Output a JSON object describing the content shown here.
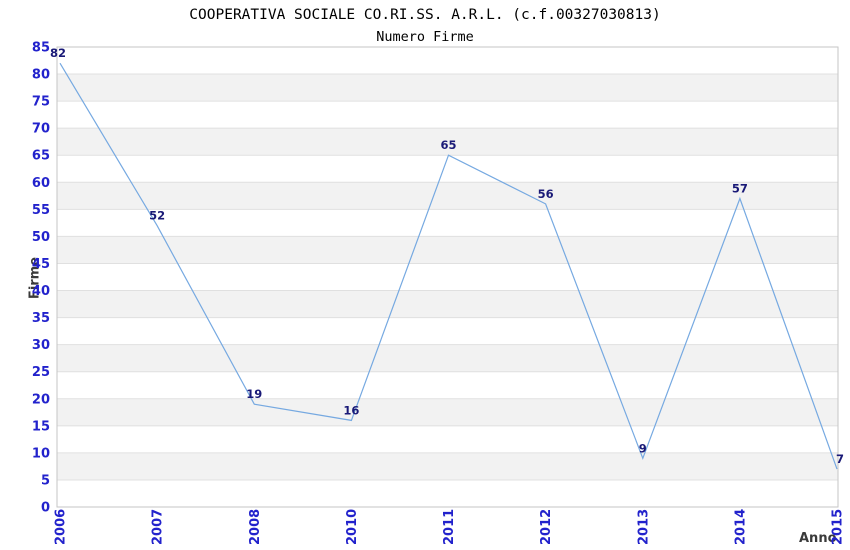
{
  "header": {
    "title": "COOPERATIVA SOCIALE CO.RI.SS. A.R.L. (c.f.00327030813)",
    "subtitle": "Numero Firme"
  },
  "chart_data": {
    "type": "line",
    "title": "COOPERATIVA SOCIALE CO.RI.SS. A.R.L. (c.f.00327030813)",
    "subtitle": "Numero Firme",
    "categories": [
      "2006",
      "2007",
      "2008",
      "2010",
      "2011",
      "2012",
      "2013",
      "2014",
      "2015"
    ],
    "values": [
      82,
      52,
      19,
      16,
      65,
      56,
      9,
      57,
      7
    ],
    "xlabel": "Anno",
    "ylabel": "Firme",
    "ylim": [
      0,
      85
    ],
    "ytick_step": 5,
    "grid": "horizontal alternating bands with gridlines every 5",
    "legend": "none",
    "point_labels_shown": true,
    "colors": {
      "line": "#76a9e1",
      "tick_label": "#2222cc",
      "point_label": "#191977",
      "band_fill": "#f2f2f2",
      "gridline": "#e0e0e0",
      "plot_border": "#c6c6c6",
      "axis_title": "#3a3a3a",
      "title": "#000000",
      "background": "#ffffff"
    }
  }
}
